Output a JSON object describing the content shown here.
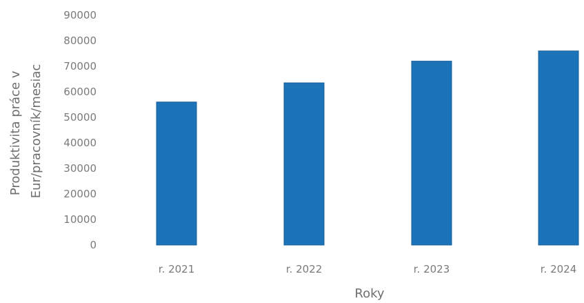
{
  "chart_data": {
    "type": "bar",
    "categories": [
      "r. 2021",
      "r. 2022",
      "r. 2023",
      "r. 2024"
    ],
    "values": [
      56000,
      63500,
      72000,
      76000
    ],
    "title": "",
    "xlabel": "Roky",
    "ylabel_lines": [
      "Produktivita práce v",
      "Eur/pracovník/mesiac"
    ],
    "ylim": [
      0,
      90000
    ],
    "yticks": [
      "0",
      "10000",
      "20000",
      "30000",
      "40000",
      "50000",
      "60000",
      "70000",
      "80000",
      "90000"
    ],
    "grid": false,
    "legend": "none",
    "bar_color": "#1d73b8"
  }
}
